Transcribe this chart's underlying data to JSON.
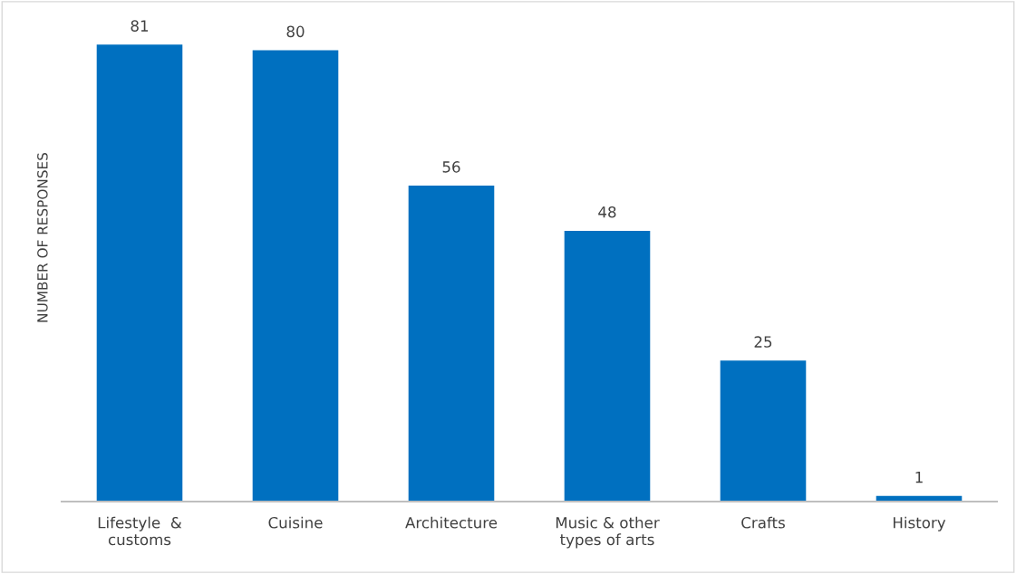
{
  "chart_data": {
    "type": "bar",
    "categories": [
      "Lifestyle  &\ncustoms",
      "Cuisine",
      "Architecture",
      "Music & other\ntypes of arts",
      "Crafts",
      "History"
    ],
    "values": [
      81,
      80,
      56,
      48,
      25,
      1
    ],
    "color": "#0070c0",
    "ylabel": "NUMBER OF RESPONSES",
    "data_labels": true,
    "tick_labels": "x",
    "grid": false,
    "legend": false
  }
}
